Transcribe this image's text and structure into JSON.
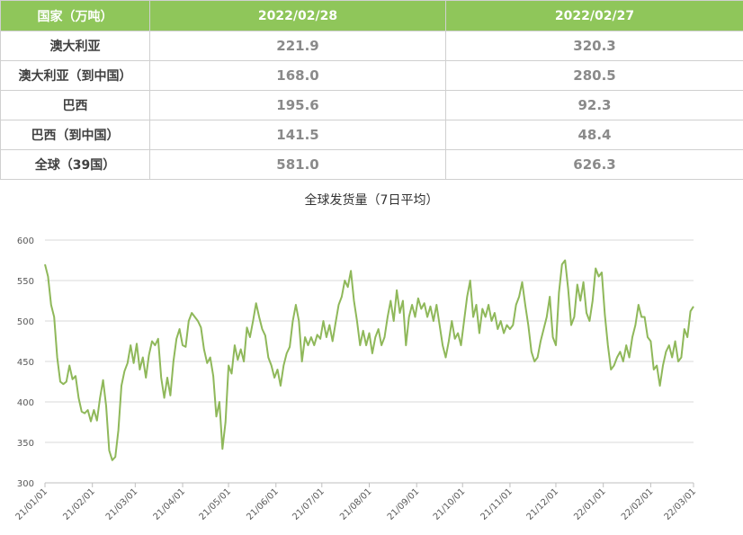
{
  "table": {
    "headers": [
      "国家（万吨）",
      "2022/02/28",
      "2022/02/27"
    ],
    "rows": [
      {
        "name": "澳大利亚",
        "v1": "221.9",
        "v2": "320.3"
      },
      {
        "name": "澳大利亚（到中国）",
        "v1": "168.0",
        "v2": "280.5"
      },
      {
        "name": "巴西",
        "v1": "195.6",
        "v2": "92.3"
      },
      {
        "name": "巴西（到中国）",
        "v1": "141.5",
        "v2": "48.4"
      },
      {
        "name": "全球（39国）",
        "v1": "581.0",
        "v2": "626.3"
      }
    ]
  },
  "chart_data": {
    "type": "line",
    "title": "全球发货量（7日平均）",
    "ylim": [
      300,
      600
    ],
    "yticks": [
      300,
      350,
      400,
      450,
      500,
      550,
      600
    ],
    "xlim": [
      "2021-01-01",
      "2022-03-01"
    ],
    "xticks": [
      "21/01/01",
      "21/02/01",
      "21/03/01",
      "21/04/01",
      "21/05/01",
      "21/06/01",
      "21/07/01",
      "21/08/01",
      "21/09/01",
      "21/10/01",
      "21/11/01",
      "21/12/01",
      "22/01/01",
      "22/02/01",
      "22/03/01"
    ],
    "grid": "y",
    "series_color": "#8fb85a",
    "series": [
      {
        "points": [
          [
            "2021-01-01",
            570
          ],
          [
            "2021-01-03",
            555
          ],
          [
            "2021-01-05",
            520
          ],
          [
            "2021-01-07",
            505
          ],
          [
            "2021-01-09",
            455
          ],
          [
            "2021-01-11",
            425
          ],
          [
            "2021-01-13",
            422
          ],
          [
            "2021-01-15",
            425
          ],
          [
            "2021-01-17",
            445
          ],
          [
            "2021-01-19",
            428
          ],
          [
            "2021-01-21",
            432
          ],
          [
            "2021-01-23",
            405
          ],
          [
            "2021-01-25",
            388
          ],
          [
            "2021-01-27",
            386
          ],
          [
            "2021-01-29",
            390
          ],
          [
            "2021-01-31",
            376
          ],
          [
            "2021-02-02",
            390
          ],
          [
            "2021-02-04",
            377
          ],
          [
            "2021-02-06",
            405
          ],
          [
            "2021-02-08",
            427
          ],
          [
            "2021-02-10",
            395
          ],
          [
            "2021-02-12",
            340
          ],
          [
            "2021-02-14",
            328
          ],
          [
            "2021-02-16",
            332
          ],
          [
            "2021-02-18",
            365
          ],
          [
            "2021-02-20",
            420
          ],
          [
            "2021-02-22",
            438
          ],
          [
            "2021-02-24",
            448
          ],
          [
            "2021-02-26",
            470
          ],
          [
            "2021-02-28",
            448
          ],
          [
            "2021-03-02",
            472
          ],
          [
            "2021-03-04",
            440
          ],
          [
            "2021-03-06",
            455
          ],
          [
            "2021-03-08",
            430
          ],
          [
            "2021-03-10",
            458
          ],
          [
            "2021-03-12",
            475
          ],
          [
            "2021-03-14",
            470
          ],
          [
            "2021-03-16",
            478
          ],
          [
            "2021-03-18",
            430
          ],
          [
            "2021-03-20",
            405
          ],
          [
            "2021-03-22",
            430
          ],
          [
            "2021-03-24",
            408
          ],
          [
            "2021-03-26",
            450
          ],
          [
            "2021-03-28",
            478
          ],
          [
            "2021-03-30",
            490
          ],
          [
            "2021-04-01",
            470
          ],
          [
            "2021-04-03",
            468
          ],
          [
            "2021-04-05",
            500
          ],
          [
            "2021-04-07",
            510
          ],
          [
            "2021-04-09",
            505
          ],
          [
            "2021-04-11",
            500
          ],
          [
            "2021-04-13",
            492
          ],
          [
            "2021-04-15",
            465
          ],
          [
            "2021-04-17",
            448
          ],
          [
            "2021-04-19",
            455
          ],
          [
            "2021-04-21",
            432
          ],
          [
            "2021-04-23",
            382
          ],
          [
            "2021-04-25",
            400
          ],
          [
            "2021-04-27",
            342
          ],
          [
            "2021-04-29",
            375
          ],
          [
            "2021-05-01",
            445
          ],
          [
            "2021-05-03",
            435
          ],
          [
            "2021-05-05",
            470
          ],
          [
            "2021-05-07",
            452
          ],
          [
            "2021-05-09",
            465
          ],
          [
            "2021-05-11",
            450
          ],
          [
            "2021-05-13",
            492
          ],
          [
            "2021-05-15",
            480
          ],
          [
            "2021-05-17",
            500
          ],
          [
            "2021-05-19",
            522
          ],
          [
            "2021-05-21",
            505
          ],
          [
            "2021-05-23",
            490
          ],
          [
            "2021-05-25",
            482
          ],
          [
            "2021-05-27",
            455
          ],
          [
            "2021-05-29",
            445
          ],
          [
            "2021-05-31",
            430
          ],
          [
            "2021-06-02",
            440
          ],
          [
            "2021-06-04",
            420
          ],
          [
            "2021-06-06",
            445
          ],
          [
            "2021-06-08",
            460
          ],
          [
            "2021-06-10",
            468
          ],
          [
            "2021-06-12",
            500
          ],
          [
            "2021-06-14",
            520
          ],
          [
            "2021-06-16",
            500
          ],
          [
            "2021-06-18",
            450
          ],
          [
            "2021-06-20",
            480
          ],
          [
            "2021-06-22",
            470
          ],
          [
            "2021-06-24",
            480
          ],
          [
            "2021-06-26",
            470
          ],
          [
            "2021-06-28",
            483
          ],
          [
            "2021-06-30",
            478
          ],
          [
            "2021-07-02",
            500
          ],
          [
            "2021-07-04",
            480
          ],
          [
            "2021-07-06",
            495
          ],
          [
            "2021-07-08",
            475
          ],
          [
            "2021-07-10",
            498
          ],
          [
            "2021-07-12",
            520
          ],
          [
            "2021-07-14",
            530
          ],
          [
            "2021-07-16",
            550
          ],
          [
            "2021-07-18",
            542
          ],
          [
            "2021-07-20",
            562
          ],
          [
            "2021-07-22",
            525
          ],
          [
            "2021-07-24",
            500
          ],
          [
            "2021-07-26",
            470
          ],
          [
            "2021-07-28",
            488
          ],
          [
            "2021-07-30",
            470
          ],
          [
            "2021-08-01",
            485
          ],
          [
            "2021-08-03",
            460
          ],
          [
            "2021-08-05",
            480
          ],
          [
            "2021-08-07",
            490
          ],
          [
            "2021-08-09",
            470
          ],
          [
            "2021-08-11",
            480
          ],
          [
            "2021-08-13",
            505
          ],
          [
            "2021-08-15",
            525
          ],
          [
            "2021-08-17",
            500
          ],
          [
            "2021-08-19",
            538
          ],
          [
            "2021-08-21",
            510
          ],
          [
            "2021-08-23",
            525
          ],
          [
            "2021-08-25",
            470
          ],
          [
            "2021-08-27",
            505
          ],
          [
            "2021-08-29",
            520
          ],
          [
            "2021-08-31",
            505
          ],
          [
            "2021-09-02",
            528
          ],
          [
            "2021-09-04",
            515
          ],
          [
            "2021-09-06",
            522
          ],
          [
            "2021-09-08",
            505
          ],
          [
            "2021-09-10",
            518
          ],
          [
            "2021-09-12",
            500
          ],
          [
            "2021-09-14",
            520
          ],
          [
            "2021-09-16",
            495
          ],
          [
            "2021-09-18",
            470
          ],
          [
            "2021-09-20",
            455
          ],
          [
            "2021-09-22",
            475
          ],
          [
            "2021-09-24",
            500
          ],
          [
            "2021-09-26",
            478
          ],
          [
            "2021-09-28",
            485
          ],
          [
            "2021-09-30",
            470
          ],
          [
            "2021-10-02",
            500
          ],
          [
            "2021-10-04",
            530
          ],
          [
            "2021-10-06",
            550
          ],
          [
            "2021-10-08",
            505
          ],
          [
            "2021-10-10",
            520
          ],
          [
            "2021-10-12",
            485
          ],
          [
            "2021-10-14",
            515
          ],
          [
            "2021-10-16",
            505
          ],
          [
            "2021-10-18",
            520
          ],
          [
            "2021-10-20",
            500
          ],
          [
            "2021-10-22",
            510
          ],
          [
            "2021-10-24",
            490
          ],
          [
            "2021-10-26",
            500
          ],
          [
            "2021-10-28",
            485
          ],
          [
            "2021-10-30",
            495
          ],
          [
            "2021-11-01",
            490
          ],
          [
            "2021-11-03",
            495
          ],
          [
            "2021-11-05",
            520
          ],
          [
            "2021-11-07",
            530
          ],
          [
            "2021-11-09",
            548
          ],
          [
            "2021-11-11",
            520
          ],
          [
            "2021-11-13",
            495
          ],
          [
            "2021-11-15",
            462
          ],
          [
            "2021-11-17",
            450
          ],
          [
            "2021-11-19",
            455
          ],
          [
            "2021-11-21",
            475
          ],
          [
            "2021-11-23",
            490
          ],
          [
            "2021-11-25",
            505
          ],
          [
            "2021-11-27",
            530
          ],
          [
            "2021-11-29",
            480
          ],
          [
            "2021-12-01",
            470
          ],
          [
            "2021-12-03",
            535
          ],
          [
            "2021-12-05",
            570
          ],
          [
            "2021-12-07",
            575
          ],
          [
            "2021-12-09",
            540
          ],
          [
            "2021-12-11",
            495
          ],
          [
            "2021-12-13",
            505
          ],
          [
            "2021-12-15",
            545
          ],
          [
            "2021-12-17",
            525
          ],
          [
            "2021-12-19",
            548
          ],
          [
            "2021-12-21",
            510
          ],
          [
            "2021-12-23",
            500
          ],
          [
            "2021-12-25",
            525
          ],
          [
            "2021-12-27",
            565
          ],
          [
            "2021-12-29",
            555
          ],
          [
            "2021-12-31",
            560
          ],
          [
            "2022-01-02",
            508
          ],
          [
            "2022-01-04",
            470
          ],
          [
            "2022-01-06",
            440
          ],
          [
            "2022-01-08",
            445
          ],
          [
            "2022-01-10",
            455
          ],
          [
            "2022-01-12",
            462
          ],
          [
            "2022-01-14",
            450
          ],
          [
            "2022-01-16",
            470
          ],
          [
            "2022-01-18",
            455
          ],
          [
            "2022-01-20",
            480
          ],
          [
            "2022-01-22",
            495
          ],
          [
            "2022-01-24",
            520
          ],
          [
            "2022-01-26",
            505
          ],
          [
            "2022-01-28",
            505
          ],
          [
            "2022-01-30",
            480
          ],
          [
            "2022-02-01",
            475
          ],
          [
            "2022-02-03",
            440
          ],
          [
            "2022-02-05",
            445
          ],
          [
            "2022-02-07",
            420
          ],
          [
            "2022-02-09",
            445
          ],
          [
            "2022-02-11",
            462
          ],
          [
            "2022-02-13",
            470
          ],
          [
            "2022-02-15",
            455
          ],
          [
            "2022-02-17",
            475
          ],
          [
            "2022-02-19",
            450
          ],
          [
            "2022-02-21",
            455
          ],
          [
            "2022-02-23",
            490
          ],
          [
            "2022-02-25",
            480
          ],
          [
            "2022-02-27",
            512
          ],
          [
            "2022-03-01",
            518
          ]
        ]
      }
    ]
  }
}
